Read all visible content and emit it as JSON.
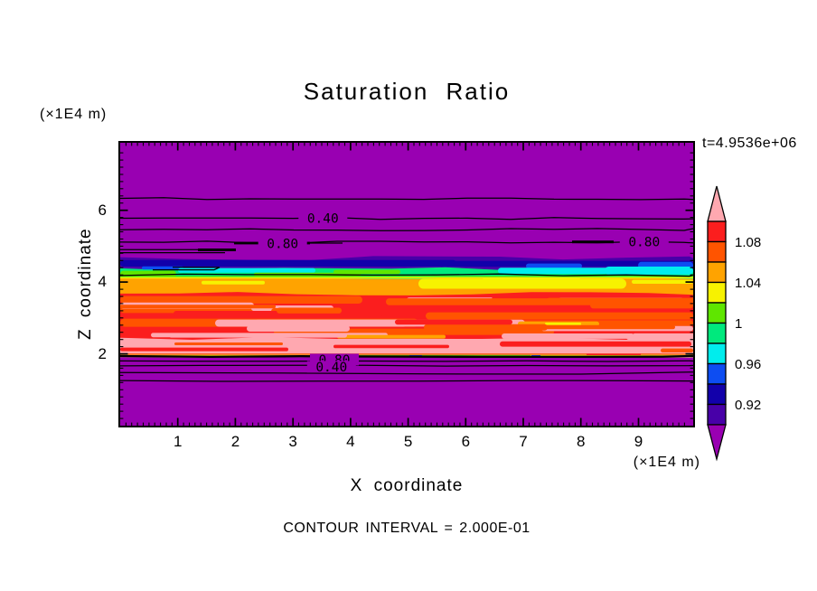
{
  "chart_data": {
    "type": "heatmap",
    "subtype": "filled_contour_plot",
    "title": "Saturation Ratio",
    "time_label": "t=4.9536e+06",
    "xlabel": "X coordinate",
    "ylabel": "Z coordinate",
    "x_unit": "(×1E4 m)",
    "y_unit": "(×1E4 m)",
    "contour_note": "CONTOUR INTERVAL = 2.000E-01",
    "contour_interval": 0.2,
    "xlim": [
      0,
      9.95
    ],
    "zlim": [
      0,
      7.88
    ],
    "x_ticks": [
      1,
      2,
      3,
      4,
      5,
      6,
      7,
      8,
      9
    ],
    "z_ticks": [
      2,
      4,
      6
    ],
    "x_minor_step": 0.1,
    "z_minor_step": 0.2,
    "grid": false,
    "contour_labels": [
      {
        "text": "0.40",
        "x": 3.52,
        "z": 5.78
      },
      {
        "text": "0.80",
        "x": 2.82,
        "z": 5.07
      },
      {
        "text": "0.80",
        "x": 9.1,
        "z": 5.12
      },
      {
        "text": "0.80",
        "x": 3.72,
        "z": 1.84
      },
      {
        "text": "0.40",
        "x": 3.67,
        "z": 1.64
      }
    ],
    "line_contours": {
      "upper_z": [
        6.32,
        5.77,
        5.46,
        5.11
      ],
      "mid_z": [
        4.2
      ],
      "lower_thick_z": 1.93,
      "lower_z": [
        1.8,
        1.67,
        1.47,
        1.25
      ]
    },
    "field_bands": [
      {
        "z_from": 7.88,
        "z_to": 4.67,
        "saturation_ratio": "< 0.90",
        "color": "purple"
      },
      {
        "z_from": 4.67,
        "z_to": 4.38,
        "saturation_ratio": "0.90 - 0.96",
        "colors": [
          "indigo",
          "navy",
          "blue"
        ]
      },
      {
        "z_from": 4.38,
        "z_to": 4.12,
        "saturation_ratio": "0.96 - 1.02",
        "colors": [
          "springgreen",
          "cyan",
          "chartreuse"
        ]
      },
      {
        "z_from": 4.12,
        "z_to": 3.67,
        "saturation_ratio": "1.02 - 1.06",
        "colors": [
          "orange",
          "yellow"
        ]
      },
      {
        "z_from": 3.67,
        "z_to": 2.42,
        "saturation_ratio": "1.06 - 1.10",
        "colors": [
          "red",
          "orangered",
          "pink"
        ]
      },
      {
        "z_from": 2.42,
        "z_to": 2.0,
        "saturation_ratio": "> 1.10",
        "colors": [
          "pink",
          "red"
        ]
      },
      {
        "z_from": 2.0,
        "z_to": 1.9,
        "saturation_ratio": "1.10 - 0.90 transition",
        "colors": [
          "yellow",
          "chartreuse",
          "orangered",
          "blue"
        ]
      },
      {
        "z_from": 1.9,
        "z_to": 0.0,
        "saturation_ratio": "< 0.90",
        "color": "purple"
      }
    ],
    "colorbar": {
      "orientation": "vertical",
      "tick_labels": [
        "1.08",
        "1.04",
        "1",
        "0.96",
        "0.92"
      ],
      "boundaries": [
        0.9,
        0.92,
        0.94,
        0.96,
        0.98,
        1.0,
        1.02,
        1.04,
        1.06,
        1.08,
        1.1
      ],
      "segment_colors_top_to_bottom": [
        "#FB1E1E",
        "#FF5400",
        "#FFA300",
        "#F7F200",
        "#5FE600",
        "#00E97D",
        "#00EDED",
        "#0D4DF2",
        "#1200AA",
        "#4800A8"
      ],
      "over_arrow_color": "#FFA8B0",
      "under_arrow_color": "#9900B2"
    },
    "palette": {
      "purple": "#9900B2",
      "indigo": "#4800A8",
      "navy": "#1200AA",
      "blue": "#0D4DF2",
      "cyan": "#00EDED",
      "springgreen": "#00E97D",
      "chartreuse": "#5FE600",
      "yellow": "#F7F200",
      "orange": "#FFA300",
      "orangered": "#FF5400",
      "red": "#FB1E1E",
      "pink": "#FFA8B0",
      "line": "#000000"
    }
  }
}
